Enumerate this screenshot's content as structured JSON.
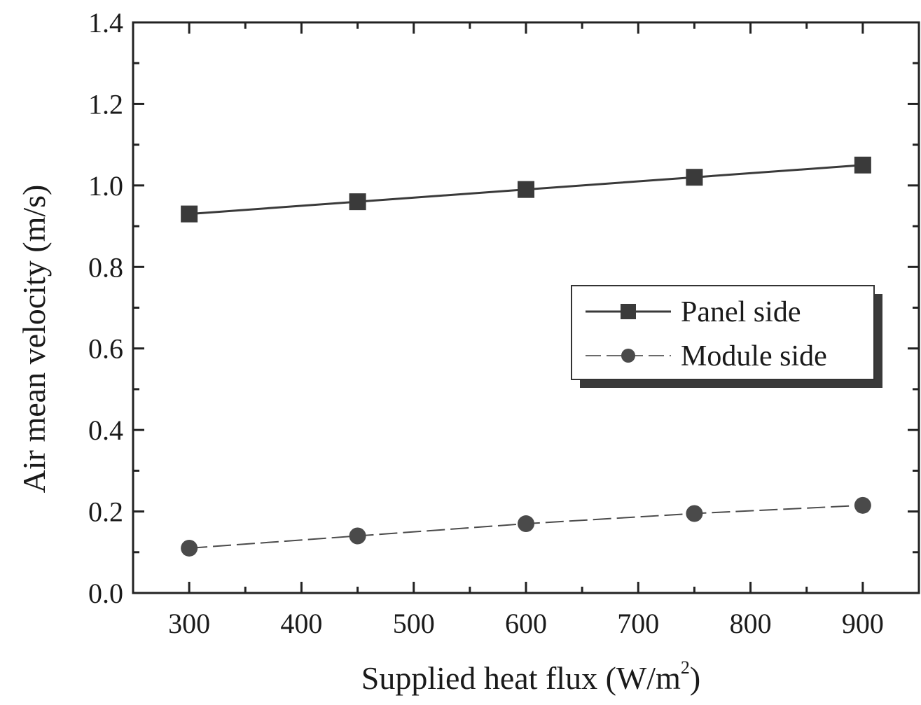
{
  "chart_data": {
    "type": "line",
    "xlabel": "Supplied heat flux (W/m",
    "xlabel_sup": "2",
    "xlabel_suffix": ")",
    "ylabel": "Air mean velocity (m/s)",
    "xlim": [
      250,
      950
    ],
    "ylim": [
      0.0,
      1.4
    ],
    "x_ticks": [
      "300",
      "400",
      "500",
      "600",
      "700",
      "800",
      "900"
    ],
    "y_ticks": [
      "0.0",
      "0.2",
      "0.4",
      "0.6",
      "0.8",
      "1.0",
      "1.2",
      "1.4"
    ],
    "x": [
      300,
      450,
      600,
      750,
      900
    ],
    "series": [
      {
        "name": "Panel side",
        "marker": "square",
        "values": [
          0.93,
          0.96,
          0.99,
          1.02,
          1.05
        ],
        "color": "#3a3a3a"
      },
      {
        "name": "Module side",
        "marker": "circle",
        "values": [
          0.11,
          0.14,
          0.17,
          0.195,
          0.215
        ],
        "color": "#4a4a4a"
      }
    ],
    "legend": "center-right",
    "grid": false
  }
}
